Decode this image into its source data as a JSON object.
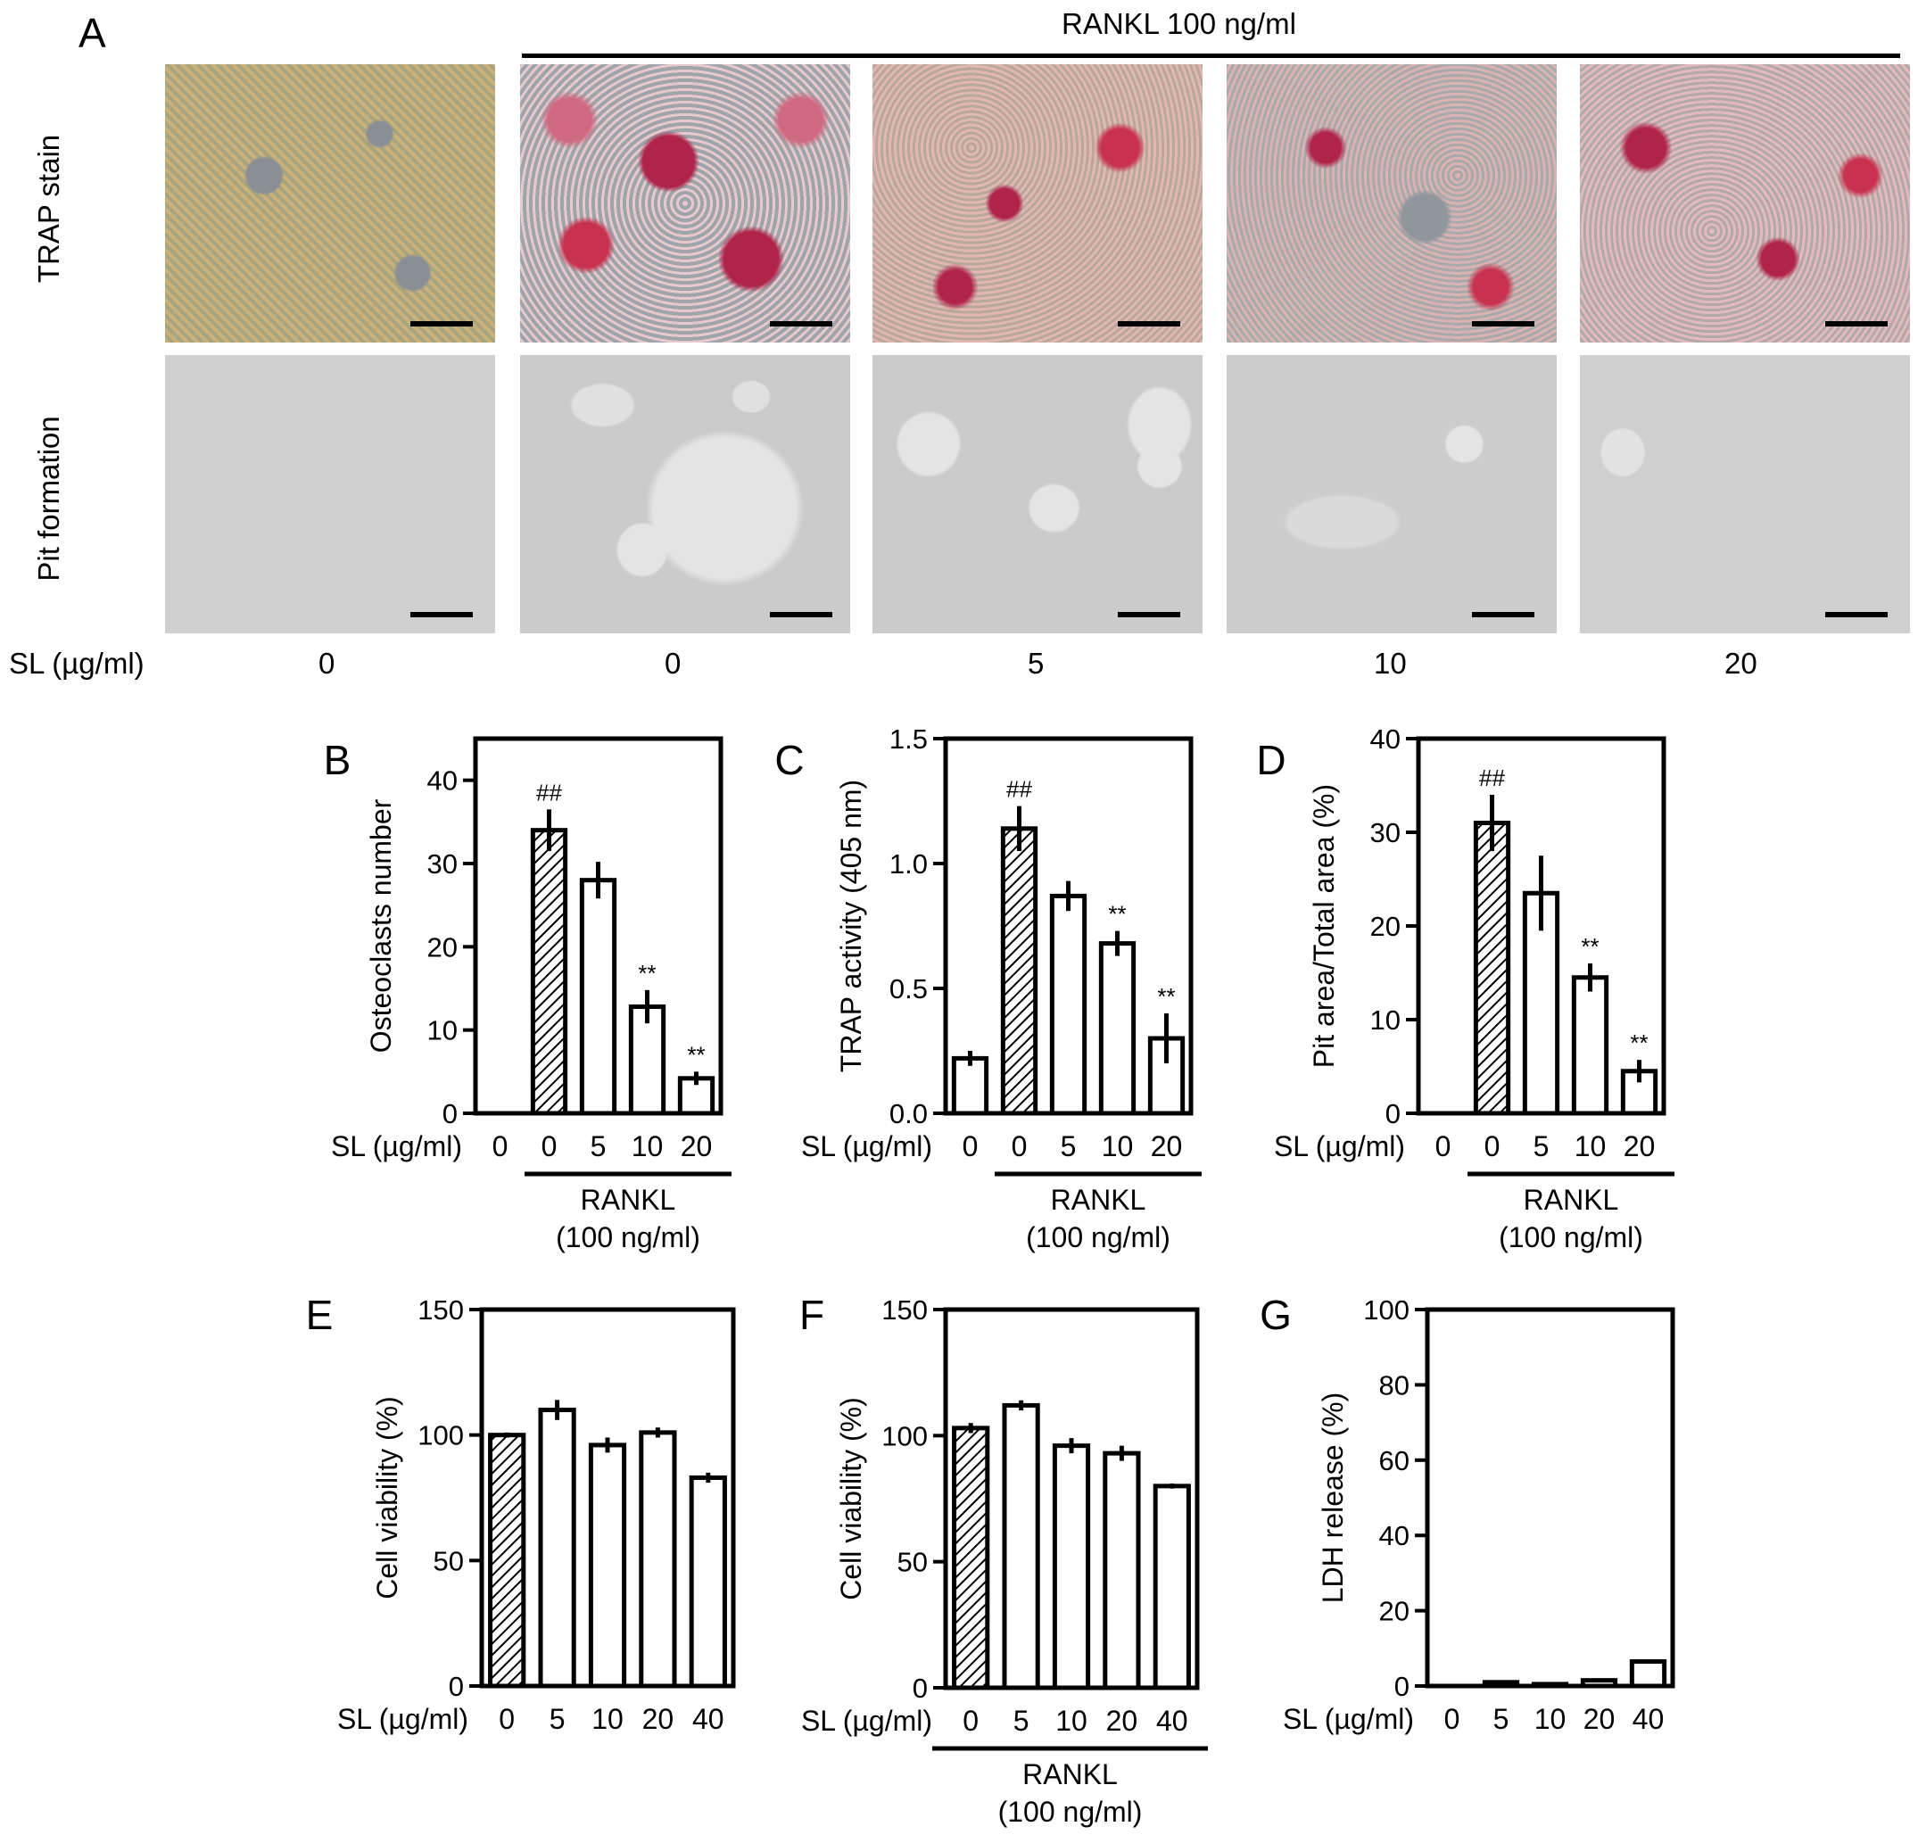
{
  "panel_a": {
    "letter": "A",
    "rankl_header": "RANKL 100 ng/ml",
    "row_labels": [
      "TRAP stain",
      "Pit formation"
    ],
    "sl_label": "SL (µg/ml)",
    "conditions": [
      "0",
      "0",
      "5",
      "10",
      "20"
    ],
    "colors": {
      "trap_control": "#c9b27a",
      "trap_stain_red": "#c8324f",
      "pit_background": "#cfcfcf",
      "pit_spot": "#e3e3e3"
    }
  },
  "chart_data": [
    {
      "panel": "B",
      "type": "bar",
      "ylabel": "Osteoclasts number",
      "xlabel": "SL (µg/ml)",
      "categories": [
        "0",
        "0",
        "5",
        "10",
        "20"
      ],
      "values": [
        0,
        34,
        28,
        12.8,
        4.2
      ],
      "errors": [
        0,
        2.5,
        2.2,
        2.0,
        0.8
      ],
      "fills": [
        "white",
        "hatched",
        "white",
        "white",
        "white"
      ],
      "annotations": [
        "",
        "##",
        "",
        "**",
        "**"
      ],
      "ylim": [
        0,
        45
      ],
      "yticks": [
        0,
        10,
        20,
        30,
        40
      ],
      "group_label": [
        "RANKL",
        "(100 ng/ml)"
      ]
    },
    {
      "panel": "C",
      "type": "bar",
      "ylabel": "TRAP activity (405 nm)",
      "xlabel": "SL (µg/ml)",
      "categories": [
        "0",
        "0",
        "5",
        "10",
        "20"
      ],
      "values": [
        0.22,
        1.14,
        0.87,
        0.68,
        0.3
      ],
      "errors": [
        0.03,
        0.09,
        0.06,
        0.05,
        0.1
      ],
      "fills": [
        "white",
        "hatched",
        "white",
        "white",
        "white"
      ],
      "annotations": [
        "",
        "##",
        "",
        "**",
        "**"
      ],
      "ylim": [
        0,
        1.5
      ],
      "yticks": [
        "0.0",
        "0.5",
        "1.0",
        "1.5"
      ],
      "group_label": [
        "RANKL",
        "(100 ng/ml)"
      ]
    },
    {
      "panel": "D",
      "type": "bar",
      "ylabel": "Pit area/Total area (%)",
      "xlabel": "SL (µg/ml)",
      "categories": [
        "0",
        "0",
        "5",
        "10",
        "20"
      ],
      "values": [
        0,
        31,
        23.5,
        14.5,
        4.5
      ],
      "errors": [
        0,
        3,
        4,
        1.5,
        1.2
      ],
      "fills": [
        "white",
        "hatched",
        "white",
        "white",
        "white"
      ],
      "annotations": [
        "",
        "##",
        "",
        "**",
        "**"
      ],
      "ylim": [
        0,
        40
      ],
      "yticks": [
        0,
        10,
        20,
        30,
        40
      ],
      "group_label": [
        "RANKL",
        "(100 ng/ml)"
      ]
    },
    {
      "panel": "E",
      "type": "bar",
      "ylabel": "Cell viability (%)",
      "xlabel": "SL (µg/ml)",
      "categories": [
        "0",
        "5",
        "10",
        "20",
        "40"
      ],
      "values": [
        100,
        110,
        96,
        101,
        83
      ],
      "errors": [
        1,
        4,
        3,
        2,
        2
      ],
      "fills": [
        "hatched",
        "white",
        "white",
        "white",
        "white"
      ],
      "annotations": [
        "",
        "",
        "",
        "",
        ""
      ],
      "ylim": [
        0,
        150
      ],
      "yticks": [
        0,
        50,
        100,
        150
      ],
      "group_label": []
    },
    {
      "panel": "F",
      "type": "bar",
      "ylabel": "Cell viability (%)",
      "xlabel": "SL (µg/ml)",
      "categories": [
        "0",
        "5",
        "10",
        "20",
        "40"
      ],
      "values": [
        103,
        112,
        96,
        93,
        80
      ],
      "errors": [
        2,
        2,
        3,
        3,
        1
      ],
      "fills": [
        "hatched",
        "white",
        "white",
        "white",
        "white"
      ],
      "annotations": [
        "",
        "",
        "",
        "",
        ""
      ],
      "ylim": [
        0,
        150
      ],
      "yticks": [
        0,
        50,
        100,
        150
      ],
      "group_label": [
        "RANKL",
        "(100 ng/ml)"
      ],
      "group_span": "all"
    },
    {
      "panel": "G",
      "type": "bar",
      "ylabel": "LDH release (%)",
      "xlabel": "SL (µg/ml)",
      "categories": [
        "0",
        "5",
        "10",
        "20",
        "40"
      ],
      "values": [
        0,
        1,
        0.5,
        1.5,
        6.5
      ],
      "errors": [
        0,
        0.3,
        0.2,
        0.4,
        0.5
      ],
      "fills": [
        "white",
        "white",
        "white",
        "white",
        "white"
      ],
      "annotations": [
        "",
        "",
        "",
        "",
        ""
      ],
      "ylim": [
        0,
        100
      ],
      "yticks": [
        0,
        20,
        40,
        60,
        80,
        100
      ],
      "group_label": []
    }
  ]
}
